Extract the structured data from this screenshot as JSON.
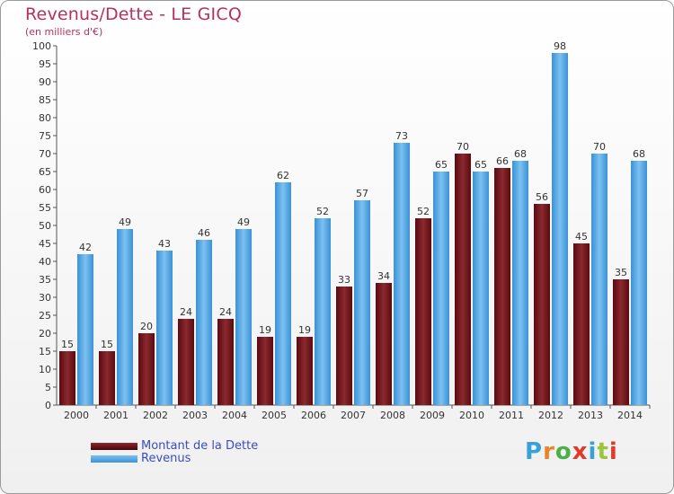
{
  "title": "Revenus/Dette - LE GICQ",
  "subtitle": "(en milliers d'€)",
  "logo": "Proxiti",
  "colors": {
    "debt": "#7a1a1f",
    "revenue": "#4ea3e0",
    "title": "#b5315c"
  },
  "chart_data": {
    "type": "bar",
    "categories": [
      "2000",
      "2001",
      "2002",
      "2003",
      "2004",
      "2005",
      "2006",
      "2007",
      "2008",
      "2009",
      "2010",
      "2011",
      "2012",
      "2013",
      "2014"
    ],
    "series": [
      {
        "name": "Montant de la Dette",
        "values": [
          15,
          15,
          20,
          24,
          24,
          19,
          19,
          33,
          34,
          52,
          70,
          66,
          56,
          45,
          35
        ]
      },
      {
        "name": "Revenus",
        "values": [
          42,
          49,
          43,
          46,
          49,
          62,
          52,
          57,
          73,
          65,
          65,
          68,
          98,
          70,
          68
        ]
      }
    ],
    "ylim": [
      0,
      100
    ],
    "yticks": [
      0,
      5,
      10,
      15,
      20,
      25,
      30,
      35,
      40,
      45,
      50,
      55,
      60,
      65,
      70,
      75,
      80,
      85,
      90,
      95,
      100
    ],
    "grid": false,
    "legend_position": "bottom-left"
  }
}
